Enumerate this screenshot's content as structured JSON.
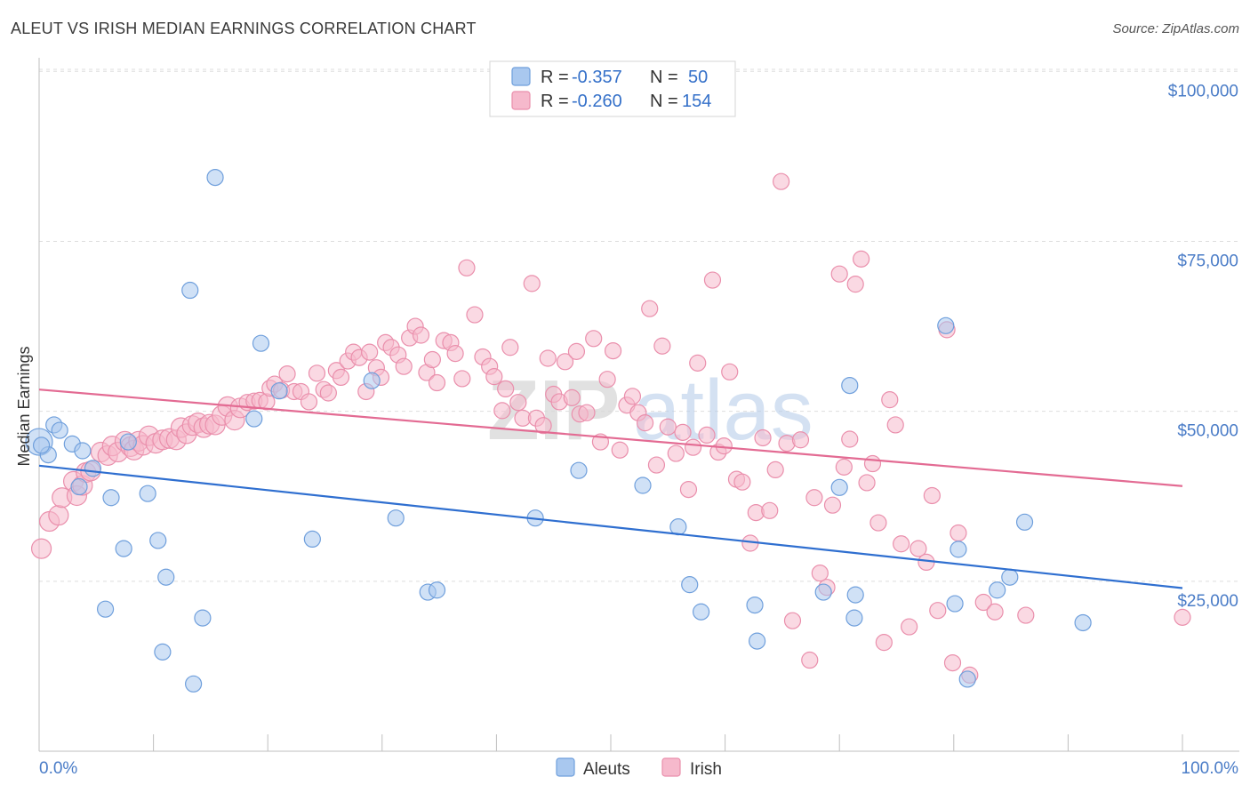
{
  "title": "ALEUT VS IRISH MEDIAN EARNINGS CORRELATION CHART",
  "source": "Source: ZipAtlas.com",
  "watermark": {
    "zip": "ZIP",
    "atlas": "atlas"
  },
  "colors": {
    "aleut_fill": "#a9c8ef",
    "aleut_stroke": "#6f9fdc",
    "aleut_line": "#2f6fd0",
    "irish_fill": "#f6b9cc",
    "irish_stroke": "#ea8fac",
    "irish_line": "#e36b93",
    "tick_label": "#4a7cc7",
    "grid": "#dddddd"
  },
  "legend": {
    "rows": [
      {
        "r_label": "R =",
        "r_value": "-0.357",
        "n_label": "N =",
        "n_value": "50",
        "series": "aleut"
      },
      {
        "r_label": "R =",
        "r_value": "-0.260",
        "n_label": "N =",
        "n_value": "154",
        "series": "irish"
      }
    ]
  },
  "bottom_legend": [
    "Aleuts",
    "Irish"
  ],
  "chart_data": {
    "type": "scatter",
    "title": "ALEUT VS IRISH MEDIAN EARNINGS CORRELATION CHART",
    "xlabel": "",
    "ylabel": "Median Earnings",
    "xlim": [
      0,
      100
    ],
    "ylim": [
      0,
      102000
    ],
    "x_tick_labels": {
      "min": "0.0%",
      "max": "100.0%"
    },
    "y_ticks": [
      {
        "value": 25000,
        "label": "$25,000"
      },
      {
        "value": 50000,
        "label": "$50,000"
      },
      {
        "value": 75000,
        "label": "$75,000"
      },
      {
        "value": 100000,
        "label": "$100,000"
      }
    ],
    "grid": true,
    "legend_position": "top-center",
    "series": [
      {
        "name": "Aleuts",
        "color": "#a9c8ef",
        "trend": {
          "x": [
            0,
            100
          ],
          "y": [
            42000,
            24000
          ]
        },
        "points": [
          [
            0,
            45500
          ],
          [
            1.3,
            48000
          ],
          [
            1.8,
            47200
          ],
          [
            0.8,
            43600
          ],
          [
            2.9,
            45200
          ],
          [
            3.8,
            44200
          ],
          [
            3.5,
            38900
          ],
          [
            4.7,
            41600
          ],
          [
            7.8,
            45500
          ],
          [
            6.3,
            37300
          ],
          [
            9.5,
            37900
          ],
          [
            7.4,
            29800
          ],
          [
            10.4,
            31000
          ],
          [
            11.1,
            25600
          ],
          [
            5.8,
            20900
          ],
          [
            10.8,
            14600
          ],
          [
            14.3,
            19600
          ],
          [
            13.5,
            9900
          ],
          [
            13.2,
            67800
          ],
          [
            15.4,
            84400
          ],
          [
            18.8,
            48900
          ],
          [
            19.4,
            60000
          ],
          [
            21.0,
            53000
          ],
          [
            23.9,
            31200
          ],
          [
            29.1,
            54500
          ],
          [
            31.2,
            34300
          ],
          [
            34.0,
            23400
          ],
          [
            34.8,
            23700
          ],
          [
            43.4,
            34300
          ],
          [
            47.2,
            41300
          ],
          [
            52.8,
            39100
          ],
          [
            55.9,
            33000
          ],
          [
            56.9,
            24500
          ],
          [
            57.9,
            20500
          ],
          [
            62.6,
            21500
          ],
          [
            62.8,
            16200
          ],
          [
            68.6,
            23400
          ],
          [
            70.0,
            38800
          ],
          [
            70.9,
            53800
          ],
          [
            71.3,
            19600
          ],
          [
            71.4,
            23000
          ],
          [
            79.3,
            62600
          ],
          [
            80.1,
            21700
          ],
          [
            80.4,
            29700
          ],
          [
            81.2,
            10600
          ],
          [
            83.8,
            23700
          ],
          [
            84.9,
            25600
          ],
          [
            86.2,
            33700
          ],
          [
            91.3,
            18900
          ],
          [
            0.2,
            45000
          ]
        ]
      },
      {
        "name": "Irish",
        "color": "#f6b9cc",
        "trend": {
          "x": [
            0,
            100
          ],
          "y": [
            53200,
            39000
          ]
        },
        "points": [
          [
            0.2,
            29800
          ],
          [
            0.9,
            33800
          ],
          [
            1.7,
            34700
          ],
          [
            2.0,
            37300
          ],
          [
            3.0,
            39700
          ],
          [
            3.3,
            37600
          ],
          [
            3.8,
            39100
          ],
          [
            4.1,
            41000
          ],
          [
            4.5,
            41200
          ],
          [
            5.4,
            44000
          ],
          [
            6.0,
            43500
          ],
          [
            6.4,
            44900
          ],
          [
            6.9,
            44000
          ],
          [
            7.5,
            45600
          ],
          [
            8.0,
            44800
          ],
          [
            8.3,
            44300
          ],
          [
            8.7,
            45600
          ],
          [
            9.1,
            45000
          ],
          [
            9.6,
            46400
          ],
          [
            10.2,
            45300
          ],
          [
            10.8,
            45800
          ],
          [
            11.4,
            46000
          ],
          [
            12.0,
            45800
          ],
          [
            12.4,
            47600
          ],
          [
            12.9,
            46700
          ],
          [
            13.4,
            47900
          ],
          [
            13.9,
            48300
          ],
          [
            14.4,
            47600
          ],
          [
            14.9,
            48100
          ],
          [
            15.4,
            48000
          ],
          [
            16.0,
            49400
          ],
          [
            16.5,
            50700
          ],
          [
            17.1,
            48700
          ],
          [
            17.6,
            50500
          ],
          [
            18.2,
            51300
          ],
          [
            18.8,
            51500
          ],
          [
            19.3,
            51600
          ],
          [
            19.9,
            51400
          ],
          [
            20.2,
            53400
          ],
          [
            20.6,
            54000
          ],
          [
            21.2,
            53100
          ],
          [
            21.7,
            55500
          ],
          [
            22.3,
            52900
          ],
          [
            22.9,
            52900
          ],
          [
            23.6,
            51400
          ],
          [
            24.3,
            55600
          ],
          [
            24.9,
            53200
          ],
          [
            25.3,
            52700
          ],
          [
            26.0,
            56000
          ],
          [
            26.4,
            55000
          ],
          [
            27.0,
            57400
          ],
          [
            27.5,
            58700
          ],
          [
            28.0,
            57900
          ],
          [
            28.6,
            52900
          ],
          [
            28.9,
            58700
          ],
          [
            29.5,
            56400
          ],
          [
            29.9,
            55000
          ],
          [
            30.3,
            60100
          ],
          [
            30.8,
            59400
          ],
          [
            31.4,
            58300
          ],
          [
            31.9,
            56600
          ],
          [
            32.4,
            60800
          ],
          [
            32.9,
            62500
          ],
          [
            33.4,
            61200
          ],
          [
            33.9,
            55700
          ],
          [
            34.4,
            57600
          ],
          [
            34.8,
            54200
          ],
          [
            35.4,
            60400
          ],
          [
            36.0,
            60100
          ],
          [
            36.4,
            58500
          ],
          [
            37.0,
            54800
          ],
          [
            37.4,
            71100
          ],
          [
            38.1,
            64200
          ],
          [
            38.8,
            58000
          ],
          [
            39.4,
            56600
          ],
          [
            39.8,
            55100
          ],
          [
            40.5,
            50100
          ],
          [
            40.8,
            53300
          ],
          [
            41.2,
            59400
          ],
          [
            41.9,
            51300
          ],
          [
            42.3,
            49000
          ],
          [
            43.1,
            68800
          ],
          [
            43.5,
            49000
          ],
          [
            44.1,
            47900
          ],
          [
            44.5,
            57800
          ],
          [
            45.0,
            52500
          ],
          [
            45.5,
            51400
          ],
          [
            46.0,
            57300
          ],
          [
            46.6,
            52000
          ],
          [
            47.0,
            58800
          ],
          [
            47.3,
            49600
          ],
          [
            47.9,
            49800
          ],
          [
            48.5,
            60700
          ],
          [
            49.1,
            45500
          ],
          [
            49.7,
            54700
          ],
          [
            50.2,
            58900
          ],
          [
            50.8,
            44300
          ],
          [
            51.4,
            50900
          ],
          [
            51.9,
            52200
          ],
          [
            52.4,
            49800
          ],
          [
            53.0,
            48300
          ],
          [
            53.4,
            65100
          ],
          [
            54.0,
            42100
          ],
          [
            54.5,
            59600
          ],
          [
            55.0,
            47700
          ],
          [
            55.7,
            43800
          ],
          [
            56.3,
            46900
          ],
          [
            56.8,
            38500
          ],
          [
            57.2,
            44700
          ],
          [
            57.6,
            57100
          ],
          [
            58.4,
            46500
          ],
          [
            58.9,
            69300
          ],
          [
            59.4,
            44000
          ],
          [
            59.9,
            44900
          ],
          [
            60.4,
            55800
          ],
          [
            61.0,
            40000
          ],
          [
            61.5,
            39600
          ],
          [
            62.2,
            30600
          ],
          [
            62.7,
            35100
          ],
          [
            63.3,
            46100
          ],
          [
            63.9,
            35400
          ],
          [
            64.4,
            41400
          ],
          [
            64.9,
            83800
          ],
          [
            65.4,
            45300
          ],
          [
            65.9,
            19200
          ],
          [
            66.6,
            45800
          ],
          [
            67.4,
            13400
          ],
          [
            67.8,
            37300
          ],
          [
            68.3,
            26200
          ],
          [
            68.9,
            24100
          ],
          [
            69.4,
            36200
          ],
          [
            70.0,
            70200
          ],
          [
            70.4,
            41800
          ],
          [
            70.9,
            45900
          ],
          [
            71.4,
            68700
          ],
          [
            71.9,
            72400
          ],
          [
            72.4,
            39500
          ],
          [
            72.9,
            42300
          ],
          [
            73.4,
            33600
          ],
          [
            73.9,
            16000
          ],
          [
            74.4,
            51700
          ],
          [
            74.9,
            48000
          ],
          [
            75.4,
            30500
          ],
          [
            76.1,
            18300
          ],
          [
            76.9,
            29800
          ],
          [
            77.6,
            27800
          ],
          [
            78.1,
            37600
          ],
          [
            78.6,
            20700
          ],
          [
            79.4,
            62000
          ],
          [
            79.9,
            13000
          ],
          [
            80.4,
            32100
          ],
          [
            81.4,
            11200
          ],
          [
            82.6,
            21900
          ],
          [
            83.6,
            20500
          ],
          [
            86.3,
            20000
          ],
          [
            100.0,
            19700
          ]
        ]
      }
    ]
  }
}
